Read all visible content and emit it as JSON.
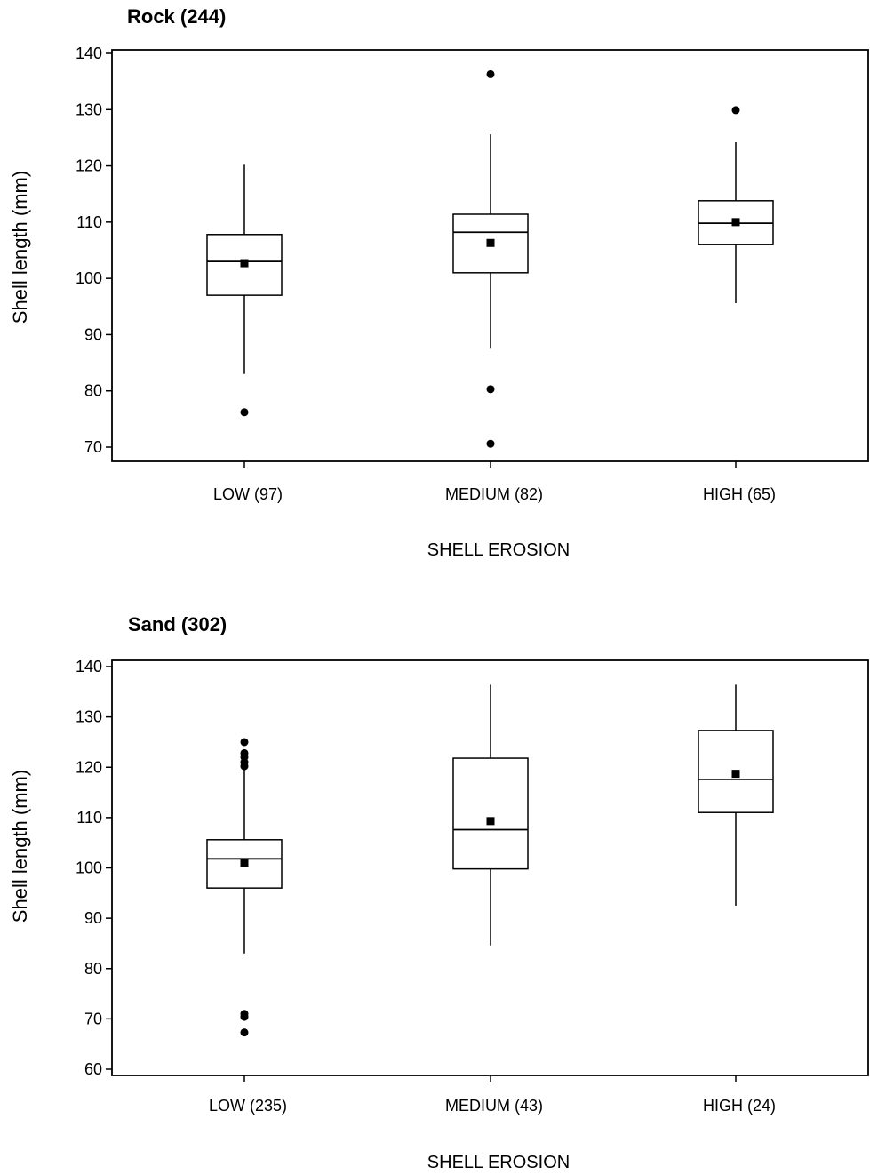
{
  "chart_data": [
    {
      "type": "boxplot",
      "title": "Rock (244)",
      "xlabel": "SHELL EROSION",
      "ylabel": "Shell length (mm)",
      "ylim": [
        67,
        142
      ],
      "yticks": [
        70,
        80,
        90,
        100,
        110,
        120,
        130,
        140
      ],
      "categories": [
        "LOW (97)",
        "MEDIUM (82)",
        "HIGH (65)"
      ],
      "boxes": [
        {
          "whisker_low": 83,
          "q1": 97,
          "median": 103,
          "q3": 107.8,
          "whisker_high": 120.2,
          "mean": 102.7,
          "outliers": [
            76.2
          ]
        },
        {
          "whisker_low": 87.5,
          "q1": 101,
          "median": 108.2,
          "q3": 111.4,
          "whisker_high": 125.6,
          "mean": 106.3,
          "outliers": [
            136.3,
            80.3,
            70.6
          ]
        },
        {
          "whisker_low": 95.6,
          "q1": 106,
          "median": 109.8,
          "q3": 113.8,
          "whisker_high": 124.2,
          "mean": 110,
          "outliers": [
            129.9
          ]
        }
      ],
      "grid": false
    },
    {
      "type": "boxplot",
      "title": "Sand (302)",
      "xlabel": "SHELL EROSION",
      "ylabel": "Shell length (mm)",
      "ylim": [
        59,
        141
      ],
      "yticks": [
        60,
        70,
        80,
        90,
        100,
        110,
        120,
        130,
        140
      ],
      "categories": [
        "LOW (235)",
        "MEDIUM (43)",
        "HIGH (24)"
      ],
      "boxes": [
        {
          "whisker_low": 83,
          "q1": 96,
          "median": 101.8,
          "q3": 105.6,
          "whisker_high": 119.5,
          "mean": 101,
          "outliers": [
            125,
            122.8,
            122,
            121,
            120.2,
            71,
            70.4,
            67.3
          ]
        },
        {
          "whisker_low": 84.6,
          "q1": 99.8,
          "median": 107.6,
          "q3": 121.8,
          "whisker_high": 136.4,
          "mean": 109.3,
          "outliers": []
        },
        {
          "whisker_low": 92.5,
          "q1": 111,
          "median": 117.6,
          "q3": 127.3,
          "whisker_high": 136.4,
          "mean": 118.7,
          "outliers": []
        }
      ],
      "grid": false
    }
  ]
}
